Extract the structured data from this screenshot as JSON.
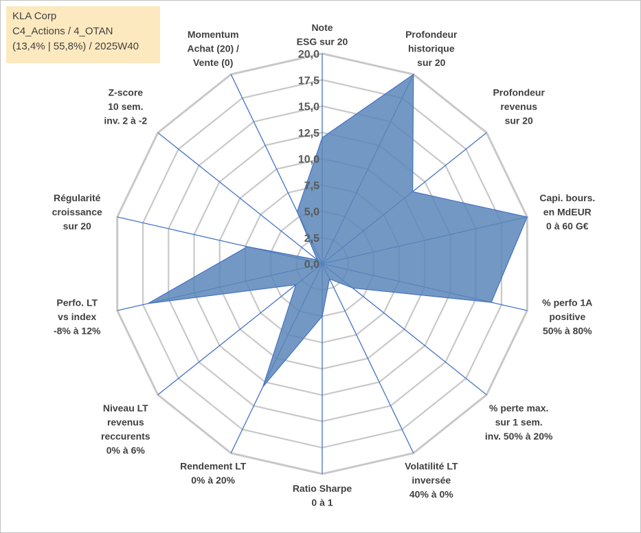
{
  "info": {
    "company": "KLA Corp",
    "portfolio": "C4_Actions / 4_OTAN",
    "stats": "(13,4% | 55,8%) / 2025W40"
  },
  "colors": {
    "grid": "#c8c8c8",
    "spoke": "#4472c4",
    "fill": "#5b86b9",
    "fill_stroke": "#4472c4",
    "info_bg": "#fde9bf"
  },
  "chart_data": {
    "type": "radar",
    "rmin": 0,
    "rmax": 20,
    "ticks": [
      "0,0",
      "2,5",
      "5,0",
      "7,5",
      "10,0",
      "12,5",
      "15,0",
      "17,5",
      "20,0"
    ],
    "tick_values": [
      0,
      2.5,
      5,
      7.5,
      10,
      12.5,
      15,
      17.5,
      20
    ],
    "axes": [
      {
        "label": [
          "Note",
          "ESG sur 20"
        ],
        "value": 12
      },
      {
        "label": [
          "Profondeur",
          "historique",
          "sur 20"
        ],
        "value": 20
      },
      {
        "label": [
          "Profondeur",
          "revenus",
          "sur 20"
        ],
        "value": 11
      },
      {
        "label": [
          "Capi. bours.",
          "en MdEUR",
          "0 à 60 G€"
        ],
        "value": 20
      },
      {
        "label": [
          "% perfo 1A",
          "positive",
          "50% à 80%"
        ],
        "value": 16.5
      },
      {
        "label": [
          "% perte max.",
          "sur 1 sem.",
          "inv. 50% à 20%"
        ],
        "value": 3.7
      },
      {
        "label": [
          "Volatilité LT",
          "inversée",
          "40% à 0%"
        ],
        "value": 1.6
      },
      {
        "label": [
          "Ratio Sharpe",
          "0 à 1"
        ],
        "value": 5
      },
      {
        "label": [
          "Rendement LT",
          "0% à 20%"
        ],
        "value": 13
      },
      {
        "label": [
          "Niveau LT",
          "revenus",
          "reccurents",
          "0% à 6%"
        ],
        "value": 3.2
      },
      {
        "label": [
          "Perfo. LT",
          "vs index",
          "-8% à 12%"
        ],
        "value": 17
      },
      {
        "label": [
          "Régularité",
          "croissance",
          "sur 20"
        ],
        "value": 7.3
      },
      {
        "label": [
          "Z-score",
          "10 sem.",
          "inv. 2 à -2"
        ],
        "value": 0.6
      },
      {
        "label": [
          "Momentum",
          "Achat (20) /",
          "Vente (0)"
        ],
        "value": 5.5
      }
    ]
  }
}
